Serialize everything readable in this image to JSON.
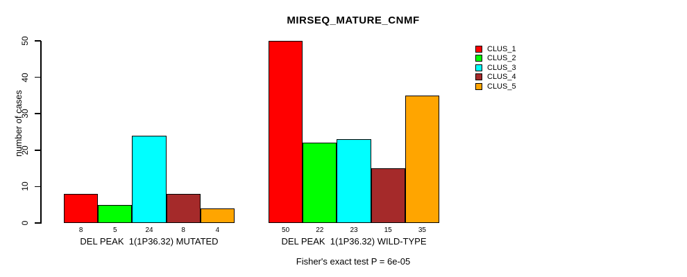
{
  "chart_data": {
    "type": "bar",
    "title": "MIRSEQ_MATURE_CNMF",
    "ylabel": "number of cases",
    "ylim": [
      0,
      50
    ],
    "yticks": [
      0,
      10,
      20,
      30,
      40,
      50
    ],
    "grid": false,
    "legend_position": "top-right",
    "series_names": [
      "CLUS_1",
      "CLUS_2",
      "CLUS_3",
      "CLUS_4",
      "CLUS_5"
    ],
    "series_colors": [
      "#FF0000",
      "#00FF00",
      "#00FFFF",
      "#A52A2A",
      "#FFA500"
    ],
    "groups": [
      {
        "label": "DEL PEAK  1(1P36.32) MUTATED",
        "values": [
          8,
          5,
          24,
          8,
          4
        ]
      },
      {
        "label": "DEL PEAK  1(1P36.32) WILD-TYPE",
        "values": [
          50,
          22,
          23,
          15,
          35
        ]
      }
    ],
    "annotation": "Fisher's exact test P = 6e-05"
  }
}
